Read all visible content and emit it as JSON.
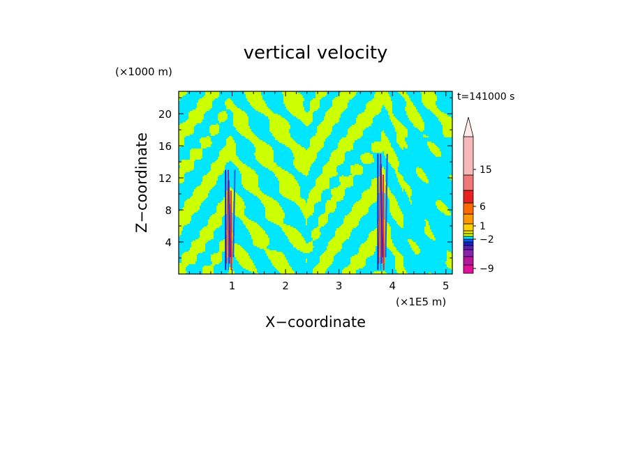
{
  "chart_data": {
    "type": "heatmap",
    "title": "vertical velocity",
    "xlabel": "X−coordinate",
    "ylabel": "Z−coordinate",
    "x_unit": "(×1E5 m)",
    "y_unit": "(×1000 m)",
    "time_label": "t=141000 s",
    "xlim": [
      0,
      5.12
    ],
    "ylim": [
      0,
      22.8
    ],
    "x_ticks": [
      1,
      2,
      3,
      4,
      5
    ],
    "y_ticks": [
      4,
      8,
      12,
      16,
      20
    ],
    "grid": false,
    "legend": "right colorbar",
    "colorbar": {
      "labels": [
        "15",
        "6",
        "1",
        "−2",
        "−9"
      ],
      "colors": [
        "#e0109a",
        "#b5169a",
        "#8a22b0",
        "#5522b8",
        "#1a20c8",
        "#0060ff",
        "#00e6ff",
        "#ccff00",
        "#e8e800",
        "#ffd000",
        "#ff9900",
        "#ff6a00",
        "#e82020",
        "#f07878",
        "#f6b8b8"
      ],
      "extend_color": "#ffe9e9"
    },
    "dominant_colors": {
      "positive_small": "#ccff00",
      "negative_small": "#00e6ff"
    },
    "features": [
      {
        "label": "updraft core",
        "x": 0.95,
        "z_range": [
          0.5,
          13
        ]
      },
      {
        "label": "updraft core",
        "x": 3.8,
        "z_range": [
          0.5,
          15
        ]
      }
    ]
  }
}
